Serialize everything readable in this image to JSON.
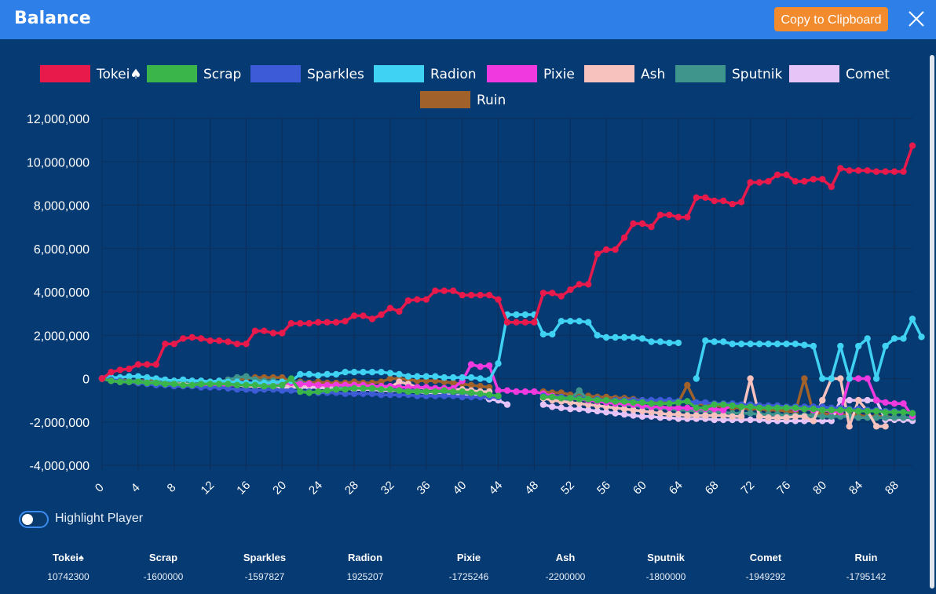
{
  "window": {
    "title": "Balance",
    "copy_label": "Copy to Clipboard"
  },
  "controls": {
    "highlight_label": "Highlight Player",
    "highlight_on": false
  },
  "summary": [
    {
      "name": "Tokei♠",
      "value": "10742300"
    },
    {
      "name": "Scrap",
      "value": "-1600000"
    },
    {
      "name": "Sparkles",
      "value": "-1597827"
    },
    {
      "name": "Radion",
      "value": "1925207"
    },
    {
      "name": "Pixie",
      "value": "-1725246"
    },
    {
      "name": "Ash",
      "value": "-2200000"
    },
    {
      "name": "Sputnik",
      "value": "-1800000"
    },
    {
      "name": "Comet",
      "value": "-1949292"
    },
    {
      "name": "Ruin",
      "value": "-1795142"
    }
  ],
  "chart_data": {
    "type": "line",
    "title": "",
    "xlabel": "",
    "ylabel": "",
    "xlim": [
      0,
      90
    ],
    "ylim": [
      -4000000,
      12000000
    ],
    "x_ticks": [
      0,
      4,
      8,
      12,
      16,
      20,
      24,
      28,
      32,
      36,
      40,
      44,
      48,
      52,
      56,
      60,
      64,
      68,
      72,
      76,
      80,
      84,
      88
    ],
    "y_ticks": [
      -4000000,
      -2000000,
      0,
      2000000,
      4000000,
      6000000,
      8000000,
      10000000,
      12000000
    ],
    "y_tick_labels": [
      "-4,000,000",
      "-2,000,000",
      "0",
      "2,000,000",
      "4,000,000",
      "6,000,000",
      "8,000,000",
      "10,000,000",
      "12,000,000"
    ],
    "grid": true,
    "legend": "top",
    "series": [
      {
        "name": "Tokei♠",
        "color": "#e8194b",
        "values": [
          0,
          300000,
          400000,
          450000,
          650000,
          650000,
          650000,
          1600000,
          1600000,
          1850000,
          1900000,
          1850000,
          1750000,
          1750000,
          1700000,
          1600000,
          1600000,
          2200000,
          2200000,
          2100000,
          2100000,
          2550000,
          2550000,
          2550000,
          2600000,
          2600000,
          2600000,
          2650000,
          2900000,
          2900000,
          2750000,
          2950000,
          3250000,
          3100000,
          3600000,
          3650000,
          3650000,
          4050000,
          4050000,
          4050000,
          3850000,
          3850000,
          3850000,
          3850000,
          3650000,
          2600000,
          2600000,
          2600000,
          2600000,
          3950000,
          3950000,
          3800000,
          4100000,
          4350000,
          4350000,
          5750000,
          5950000,
          5950000,
          6500000,
          7150000,
          7150000,
          7000000,
          7550000,
          7550000,
          7450000,
          7450000,
          8350000,
          8350000,
          8200000,
          8200000,
          8050000,
          8150000,
          9050000,
          9050000,
          9100000,
          9400000,
          9400000,
          9100000,
          9100000,
          9200000,
          9200000,
          8850000,
          9700000,
          9600000,
          9600000,
          9600000,
          9550000,
          9550000,
          9550000,
          9550000,
          10742300
        ]
      },
      {
        "name": "Scrap",
        "color": "#39b54a",
        "values": [
          0,
          -100000,
          -150000,
          -150000,
          -150000,
          -200000,
          -200000,
          -250000,
          -250000,
          -300000,
          -300000,
          -250000,
          -250000,
          -250000,
          -250000,
          -300000,
          -300000,
          -300000,
          -350000,
          -350000,
          -300000,
          0,
          -600000,
          -650000,
          -600000,
          -550000,
          -500000,
          -500000,
          -450000,
          -450000,
          -450000,
          -500000,
          -500000,
          -550000,
          -600000,
          -600000,
          -600000,
          -600000,
          -550000,
          -600000,
          -600000,
          -650000,
          -700000,
          -750000,
          -800000,
          null,
          null,
          null,
          null,
          -850000,
          -850000,
          -900000,
          -900000,
          -950000,
          -950000,
          -1000000,
          -1000000,
          -1050000,
          -1050000,
          -1100000,
          -1100000,
          -1150000,
          -1150000,
          -1150000,
          -1100000,
          -1050000,
          -1350000,
          -1350000,
          -1200000,
          -1200000,
          -1250000,
          -1300000,
          -1300000,
          -1350000,
          -1350000,
          -1350000,
          -1350000,
          -1350000,
          -1400000,
          -1400000,
          -1450000,
          -1450000,
          -1450000,
          -1450000,
          -1500000,
          -1500000,
          -1500000,
          -1550000,
          -1550000,
          -1550000,
          -1600000
        ]
      },
      {
        "name": "Sparkles",
        "color": "#3d5bd6",
        "values": [
          0,
          -50000,
          -100000,
          -150000,
          -200000,
          -250000,
          -300000,
          -300000,
          -350000,
          -350000,
          -350000,
          -400000,
          -400000,
          -400000,
          -450000,
          -500000,
          -500000,
          -550000,
          -500000,
          -500000,
          -550000,
          -550000,
          -600000,
          -600000,
          -650000,
          -650000,
          -650000,
          -700000,
          -700000,
          -700000,
          -700000,
          -750000,
          -750000,
          -750000,
          -750000,
          -800000,
          -800000,
          -800000,
          -800000,
          -800000,
          -850000,
          -850000,
          -850000,
          -850000,
          -850000,
          null,
          null,
          null,
          null,
          -800000,
          -850000,
          -850000,
          -900000,
          -900000,
          -950000,
          -950000,
          -1000000,
          -1000000,
          -1000000,
          -1000000,
          -1000000,
          -1000000,
          -1000000,
          -1000000,
          -1050000,
          -1050000,
          -1100000,
          -1100000,
          -1150000,
          -1150000,
          -1150000,
          -1200000,
          -1200000,
          -1250000,
          -1250000,
          -1250000,
          -1300000,
          -1300000,
          -1300000,
          -1300000,
          -1300000,
          -1350000,
          -1350000,
          -1400000,
          -1400000,
          -1450000,
          -1450000,
          -1500000,
          -1500000,
          -1550000,
          -1597827
        ]
      },
      {
        "name": "Radion",
        "color": "#3fd2f2",
        "values": [
          0,
          50000,
          50000,
          100000,
          100000,
          50000,
          0,
          -50000,
          -100000,
          -50000,
          -100000,
          -100000,
          -150000,
          -100000,
          -150000,
          -150000,
          -200000,
          -200000,
          -200000,
          -200000,
          -150000,
          -100000,
          200000,
          200000,
          150000,
          200000,
          200000,
          300000,
          300000,
          300000,
          300000,
          300000,
          250000,
          200000,
          100000,
          100000,
          100000,
          100000,
          50000,
          50000,
          50000,
          50000,
          0,
          -50000,
          700000,
          2950000,
          2950000,
          2950000,
          2950000,
          2050000,
          2050000,
          2650000,
          2650000,
          2650000,
          2600000,
          2000000,
          1900000,
          1900000,
          1900000,
          1900000,
          1850000,
          1700000,
          1700000,
          1650000,
          1650000,
          null,
          0,
          1750000,
          1700000,
          1700000,
          1600000,
          1600000,
          1600000,
          1600000,
          1600000,
          1600000,
          1600000,
          1600000,
          1550000,
          1500000,
          0,
          0,
          1500000,
          0,
          1500000,
          1850000,
          0,
          1500000,
          1850000,
          1850000,
          2750000,
          1925207
        ]
      },
      {
        "name": "Pixie",
        "color": "#f03ae0",
        "values": [
          0,
          -100000,
          -150000,
          -150000,
          -200000,
          -200000,
          -250000,
          -250000,
          -250000,
          -300000,
          -300000,
          -300000,
          -300000,
          -300000,
          -300000,
          -300000,
          -300000,
          -300000,
          -250000,
          -200000,
          -250000,
          -200000,
          -250000,
          -250000,
          -300000,
          -300000,
          -300000,
          -300000,
          -300000,
          -300000,
          -350000,
          -350000,
          -350000,
          -400000,
          -400000,
          -400000,
          -400000,
          -450000,
          -450000,
          -450000,
          -100000,
          650000,
          550000,
          600000,
          -550000,
          -550000,
          -600000,
          -600000,
          -600000,
          -700000,
          -800000,
          -850000,
          -900000,
          -950000,
          -1000000,
          -1050000,
          -1100000,
          -1150000,
          -1150000,
          -1200000,
          -1250000,
          -1300000,
          -1300000,
          -1350000,
          -1350000,
          -1350000,
          -1400000,
          -1400000,
          -1400000,
          -1450000,
          -1200000,
          -1250000,
          -1300000,
          -1300000,
          -1350000,
          -1350000,
          -1350000,
          -1400000,
          -1400000,
          -1450000,
          -1450000,
          -1500000,
          -1550000,
          0,
          0,
          0,
          -1000000,
          -1100000,
          -1150000,
          -1150000,
          -1725246
        ]
      },
      {
        "name": "Ash",
        "color": "#f7c1bd",
        "values": [
          0,
          -100000,
          -150000,
          -150000,
          -200000,
          -200000,
          -200000,
          -250000,
          -250000,
          -250000,
          -300000,
          -300000,
          -300000,
          -300000,
          -300000,
          -300000,
          -350000,
          -350000,
          -350000,
          -350000,
          -300000,
          -300000,
          -300000,
          -300000,
          -300000,
          -350000,
          -300000,
          -300000,
          -300000,
          -400000,
          -400000,
          -450000,
          -400000,
          -150000,
          -250000,
          -400000,
          -450000,
          -450000,
          -450000,
          -500000,
          -500000,
          -550000,
          -600000,
          -600000,
          null,
          null,
          null,
          null,
          null,
          -900000,
          -1000000,
          -1050000,
          -1100000,
          -1150000,
          -1200000,
          -1250000,
          -1300000,
          -1350000,
          -1400000,
          -1450000,
          -1500000,
          -1550000,
          -1600000,
          -1650000,
          -1650000,
          -1700000,
          -1700000,
          -1700000,
          -1700000,
          -1700000,
          -1750000,
          -1750000,
          0,
          -1750000,
          -1800000,
          -1800000,
          -1800000,
          -1750000,
          -1750000,
          -1950000,
          -1000000,
          0,
          0,
          -2200000,
          -1000000,
          -1500000,
          -2200000,
          -2200000,
          null,
          null,
          null
        ]
      },
      {
        "name": "Sputnik",
        "color": "#3f958c",
        "values": [
          0,
          -50000,
          -100000,
          -100000,
          -100000,
          -150000,
          -150000,
          -150000,
          -200000,
          -200000,
          -200000,
          -200000,
          -150000,
          -150000,
          -50000,
          50000,
          100000,
          -50000,
          -100000,
          -100000,
          -150000,
          -150000,
          -200000,
          -250000,
          -300000,
          -300000,
          -350000,
          -350000,
          -400000,
          -450000,
          -450000,
          -450000,
          -500000,
          -550000,
          -550000,
          -550000,
          -600000,
          -600000,
          -600000,
          -650000,
          -650000,
          -700000,
          -650000,
          -700000,
          null,
          null,
          null,
          null,
          null,
          -900000,
          -950000,
          -950000,
          -950000,
          -550000,
          -1000000,
          -1050000,
          -1100000,
          -1150000,
          -1200000,
          -1250000,
          -1300000,
          -1350000,
          -1350000,
          -1400000,
          -1450000,
          -1450000,
          -1500000,
          -1500000,
          -1550000,
          -1550000,
          -1600000,
          -1600000,
          -1600000,
          -1650000,
          -1650000,
          -1650000,
          -1700000,
          -1700000,
          -1700000,
          -1700000,
          -1750000,
          -1750000,
          -1750000,
          -1750000,
          -1800000,
          -1800000,
          -1800000,
          -1800000,
          -1800000,
          -1800000,
          -1800000
        ]
      },
      {
        "name": "Comet",
        "color": "#e6c4f8",
        "values": [
          0,
          -50000,
          -100000,
          -100000,
          -150000,
          -150000,
          -200000,
          -200000,
          -200000,
          -250000,
          -250000,
          -250000,
          -300000,
          -300000,
          -300000,
          -300000,
          -300000,
          -350000,
          -350000,
          -350000,
          -400000,
          -400000,
          -400000,
          -400000,
          -400000,
          -450000,
          -450000,
          -450000,
          -500000,
          -500000,
          -500000,
          -550000,
          -550000,
          -550000,
          -600000,
          -600000,
          -650000,
          -650000,
          -650000,
          -700000,
          -700000,
          -750000,
          -800000,
          -950000,
          -1000000,
          -1200000,
          null,
          null,
          null,
          -1200000,
          -1300000,
          -1350000,
          -1400000,
          -1400000,
          -1450000,
          -1500000,
          -1550000,
          -1600000,
          -1650000,
          -1700000,
          -1750000,
          -1750000,
          -1800000,
          -1800000,
          -1850000,
          -1850000,
          -1850000,
          -1850000,
          -1900000,
          -1900000,
          -1900000,
          -1900000,
          -1900000,
          -1900000,
          -1950000,
          -1950000,
          -1950000,
          -1950000,
          -1950000,
          -1950000,
          -1950000,
          -1950000,
          -1000000,
          -1000000,
          -1000000,
          -1000000,
          -1000000,
          -1900000,
          -1900000,
          -1900000,
          -1949292
        ]
      },
      {
        "name": "Ruin",
        "color": "#a0622a",
        "values": [
          0,
          -50000,
          -50000,
          -100000,
          -100000,
          -100000,
          -100000,
          -150000,
          -150000,
          -150000,
          -150000,
          -200000,
          -200000,
          -200000,
          -100000,
          -50000,
          0,
          50000,
          50000,
          50000,
          50000,
          -150000,
          -150000,
          -200000,
          -150000,
          -200000,
          -200000,
          -200000,
          -150000,
          -200000,
          -200000,
          -150000,
          0,
          0,
          -50000,
          -100000,
          -100000,
          -100000,
          -150000,
          -200000,
          -250000,
          -300000,
          -350000,
          -400000,
          null,
          null,
          null,
          null,
          null,
          -600000,
          -650000,
          -650000,
          -750000,
          -800000,
          -800000,
          -850000,
          -850000,
          -900000,
          -900000,
          -950000,
          -1000000,
          -1050000,
          -1100000,
          -1100000,
          -1100000,
          -300000,
          -1150000,
          -1200000,
          -1250000,
          -1300000,
          -1350000,
          -1350000,
          -1400000,
          -1400000,
          -1450000,
          -1450000,
          -1500000,
          -1550000,
          0,
          -1600000,
          -1600000,
          -1650000,
          -1650000,
          -1700000,
          -1700000,
          -1750000,
          -1750000,
          -1750000,
          -1800000,
          -1800000,
          -1795142
        ]
      }
    ]
  }
}
